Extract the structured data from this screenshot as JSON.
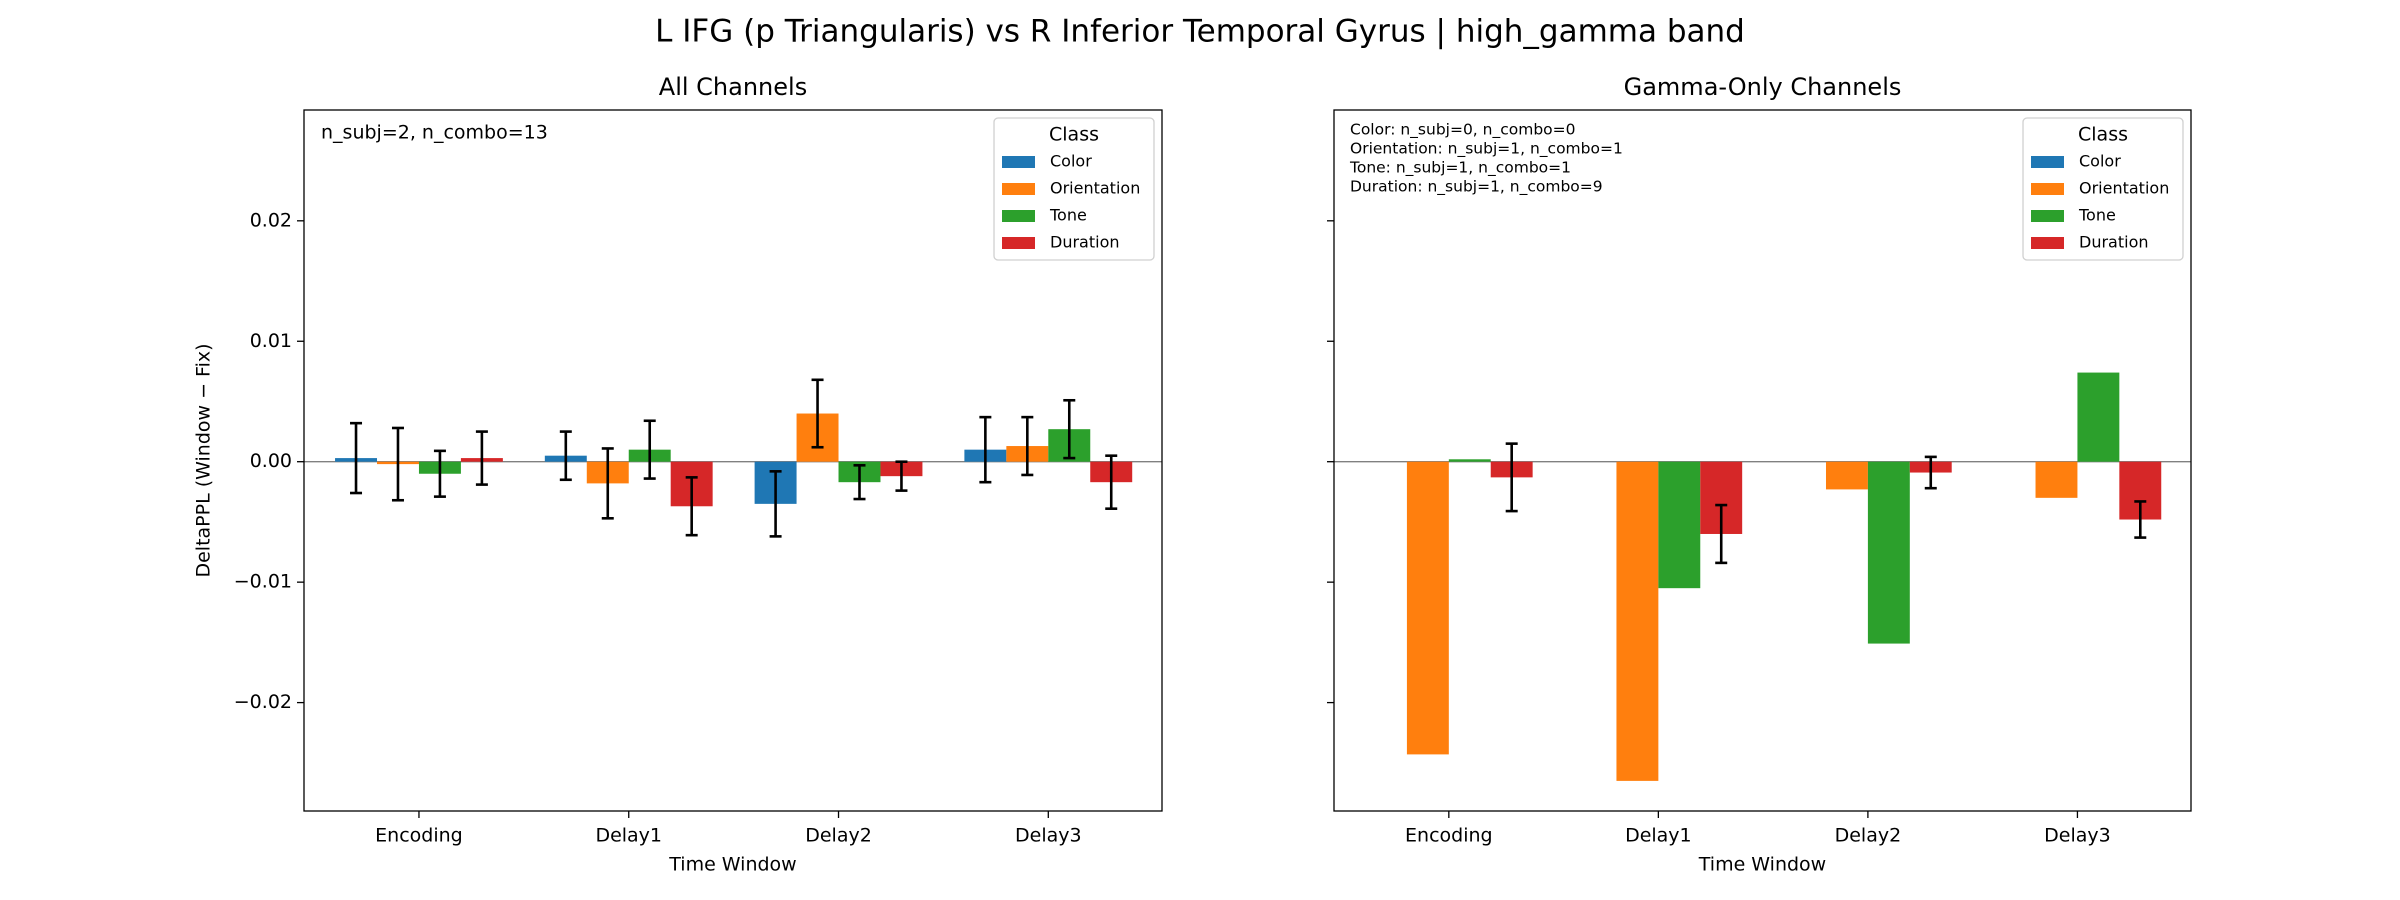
{
  "title": "L IFG (p Triangularis) vs R Inferior Temporal Gyrus  |  high_gamma band",
  "chart_data": [
    {
      "type": "bar",
      "title": "All Channels",
      "xlabel": "Time Window",
      "ylabel": "DeltaPPL (Window − Fix)",
      "categories": [
        "Encoding",
        "Delay1",
        "Delay2",
        "Delay3"
      ],
      "series": [
        {
          "name": "Color",
          "color": "#1f77b4",
          "values": [
            0.0003,
            0.0005,
            -0.0035,
            0.001
          ],
          "errors": [
            0.0029,
            0.002,
            0.0027,
            0.0027
          ]
        },
        {
          "name": "Orientation",
          "color": "#ff7f0e",
          "values": [
            -0.0002,
            -0.0018,
            0.004,
            0.0013
          ],
          "errors": [
            0.003,
            0.0029,
            0.0028,
            0.0024
          ]
        },
        {
          "name": "Tone",
          "color": "#2ca02c",
          "values": [
            -0.001,
            0.001,
            -0.0017,
            0.0027
          ],
          "errors": [
            0.0019,
            0.0024,
            0.0014,
            0.0024
          ]
        },
        {
          "name": "Duration",
          "color": "#d62728",
          "values": [
            0.0003,
            -0.0037,
            -0.0012,
            -0.0017
          ],
          "errors": [
            0.0022,
            0.0024,
            0.0012,
            0.0022
          ]
        }
      ],
      "ylim": [
        -0.029,
        0.0292
      ],
      "yticks": [
        {
          "value": -0.02,
          "label": "−0.02"
        },
        {
          "value": -0.01,
          "label": "−0.01"
        },
        {
          "value": 0,
          "label": "0.00"
        },
        0.01,
        0.02
      ],
      "ytick_labels": true,
      "annotations": [
        "n_subj=2, n_combo=13"
      ],
      "annotation_size": "large",
      "legend": {
        "title": "Class",
        "loc": "upper right"
      },
      "zero_line": true
    },
    {
      "type": "bar",
      "title": "Gamma-Only Channels",
      "xlabel": "Time Window",
      "categories": [
        "Encoding",
        "Delay1",
        "Delay2",
        "Delay3"
      ],
      "series": [
        {
          "name": "Color",
          "color": "#1f77b4",
          "values": [
            null,
            null,
            null,
            null
          ],
          "errors": [
            null,
            null,
            null,
            null
          ]
        },
        {
          "name": "Orientation",
          "color": "#ff7f0e",
          "values": [
            -0.0243,
            -0.0265,
            -0.0023,
            -0.003
          ],
          "errors": [
            null,
            null,
            null,
            null
          ]
        },
        {
          "name": "Tone",
          "color": "#2ca02c",
          "values": [
            0.0002,
            -0.0105,
            -0.0151,
            0.0074
          ],
          "errors": [
            null,
            null,
            null,
            null
          ]
        },
        {
          "name": "Duration",
          "color": "#d62728",
          "values": [
            -0.0013,
            -0.006,
            -0.0009,
            -0.0048
          ],
          "errors": [
            0.0028,
            0.0024,
            0.0013,
            0.0015
          ]
        }
      ],
      "ylim": [
        -0.029,
        0.0292
      ],
      "yticks": [
        -0.02,
        -0.01,
        0,
        0.01,
        0.02
      ],
      "ytick_labels": false,
      "annotations": [
        "Color: n_subj=0, n_combo=0",
        "Orientation: n_subj=1, n_combo=1",
        "Tone: n_subj=1, n_combo=1",
        "Duration: n_subj=1, n_combo=9"
      ],
      "annotation_size": "small",
      "legend": {
        "title": "Class",
        "loc": "upper right"
      },
      "zero_line": true
    }
  ]
}
